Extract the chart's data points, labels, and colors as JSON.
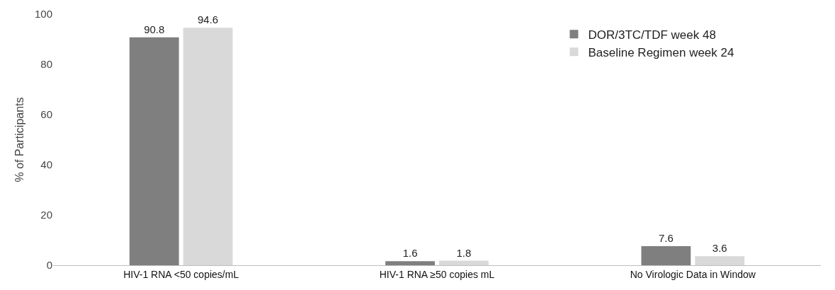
{
  "chart_data": {
    "type": "bar",
    "ylabel": "% of Participants",
    "categories": [
      "HIV-1 RNA <50 copies/mL",
      "HIV-1 RNA ≥50 copies mL",
      "No Virologic Data in Window"
    ],
    "series": [
      {
        "name": "DOR/3TC/TDF week 48",
        "color": "#7f7f7f",
        "values": [
          90.8,
          1.6,
          7.6
        ]
      },
      {
        "name": "Baseline Regimen week 24",
        "color": "#d9d9d9",
        "values": [
          94.6,
          1.8,
          3.6
        ]
      }
    ],
    "ylim": [
      0,
      100
    ],
    "yticks": [
      0,
      20,
      40,
      60,
      80,
      100
    ],
    "grid": false,
    "legend": "top right",
    "data_labels": true
  }
}
